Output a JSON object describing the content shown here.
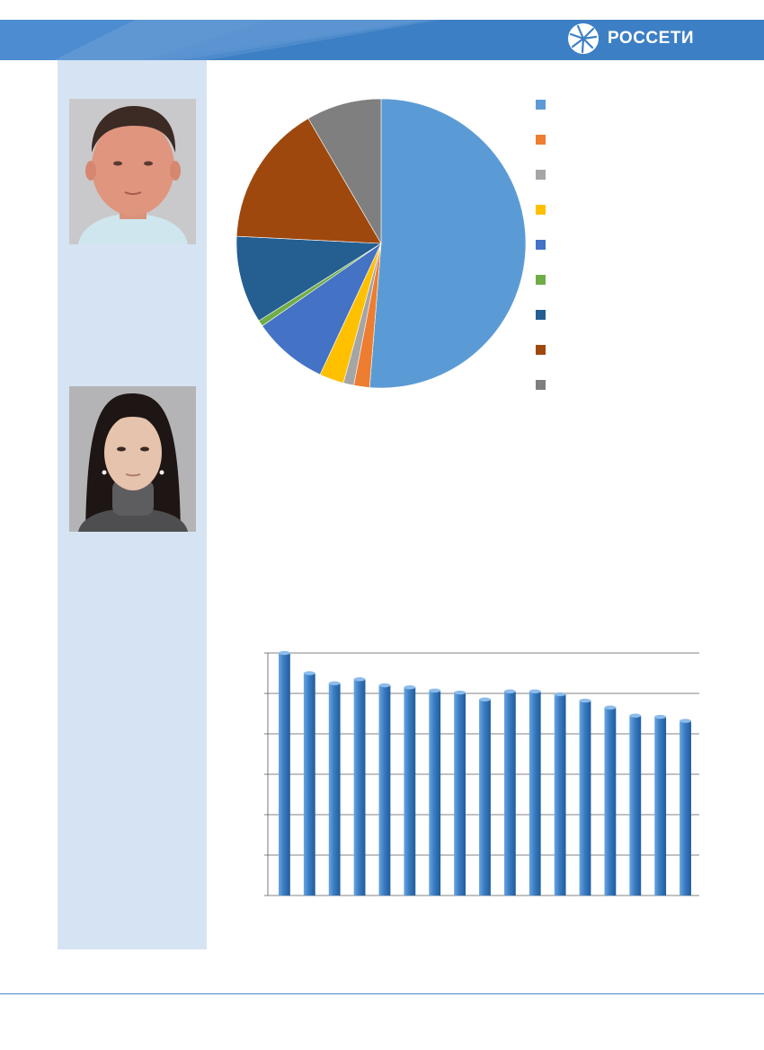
{
  "header": {
    "brand_name": "РОССЕТИ",
    "logo_icon": "rosseti-logo-icon",
    "colors": {
      "band": "#3d7fc4",
      "band_light": "#6fa0d6"
    }
  },
  "sidebar": {
    "color": "#d6e3f3"
  },
  "photos": [
    {
      "subject": "portrait-man",
      "icon": "person-photo"
    },
    {
      "subject": "portrait-woman",
      "icon": "person-photo"
    }
  ],
  "chart_data": [
    {
      "type": "pie",
      "values": [
        52.5,
        1.8,
        1.2,
        2.8,
        8.6,
        0.7,
        10.0,
        16.2,
        8.6
      ],
      "colors": [
        "#5b9bd5",
        "#ed7d31",
        "#a5a5a5",
        "#ffc000",
        "#4472c4",
        "#70ad47",
        "#255e91",
        "#9e480e",
        "#7f7f7f"
      ],
      "legend_position": "right",
      "start_angle_deg": 0,
      "direction": "clockwise"
    },
    {
      "type": "bar",
      "values": [
        6.0,
        5.5,
        5.25,
        5.35,
        5.2,
        5.15,
        5.07,
        5.02,
        4.85,
        5.05,
        5.05,
        4.98,
        4.82,
        4.65,
        4.45,
        4.42,
        4.32
      ],
      "ylim": [
        0,
        6
      ],
      "grid": true,
      "bar_color": "#3a7cc2"
    }
  ]
}
